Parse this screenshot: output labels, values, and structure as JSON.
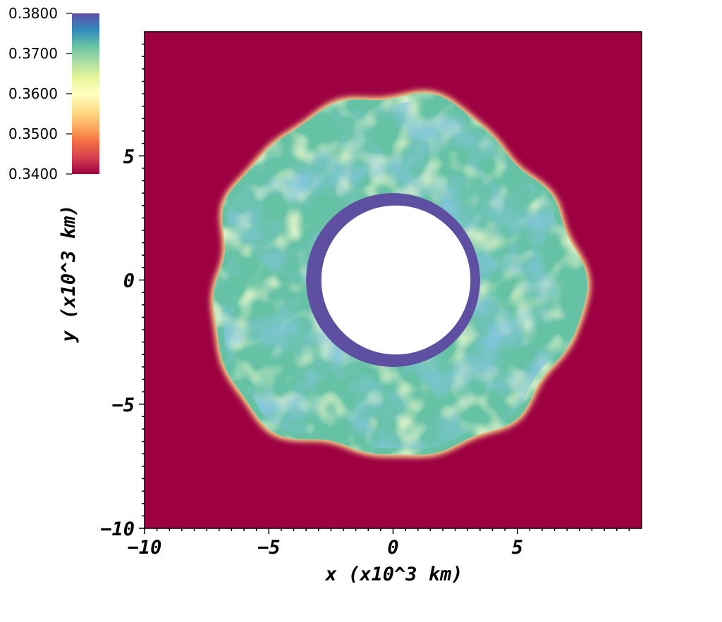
{
  "chart_data": {
    "type": "heatmap",
    "title": "",
    "xlabel": "x (x10^3 km)",
    "ylabel": "y (x10^3 km)",
    "xlim": [
      -10,
      10
    ],
    "ylim": [
      -10,
      10
    ],
    "x_ticks": [
      "-10",
      "-5",
      "0",
      "5"
    ],
    "y_ticks": [
      "-10",
      "-5",
      "0",
      "5"
    ],
    "x_tick_values": [
      -10,
      -5,
      0,
      5
    ],
    "y_tick_values": [
      -10,
      -5,
      0,
      5
    ],
    "colorbar": {
      "range": [
        0.34,
        0.38
      ],
      "labels": [
        "0.3800",
        "0.3700",
        "0.3600",
        "0.3500",
        "0.3400"
      ],
      "label_values": [
        0.38,
        0.37,
        0.36,
        0.35,
        0.34
      ],
      "colormap": "Spectral",
      "colors": [
        "#9e0142",
        "#d53e4f",
        "#f46d43",
        "#fdae61",
        "#fee08b",
        "#ffffbf",
        "#e6f598",
        "#abdda4",
        "#66c2a5",
        "#3288bd",
        "#5e4fa2"
      ]
    },
    "field": {
      "inner_hole_radius": 3.0,
      "inner_ring_outer_radius": 3.5,
      "outer_shell_mean_radius": 7.5,
      "background_value": 0.34,
      "inner_ring_value": 0.38,
      "annulus_value_range": [
        0.355,
        0.38
      ]
    }
  }
}
